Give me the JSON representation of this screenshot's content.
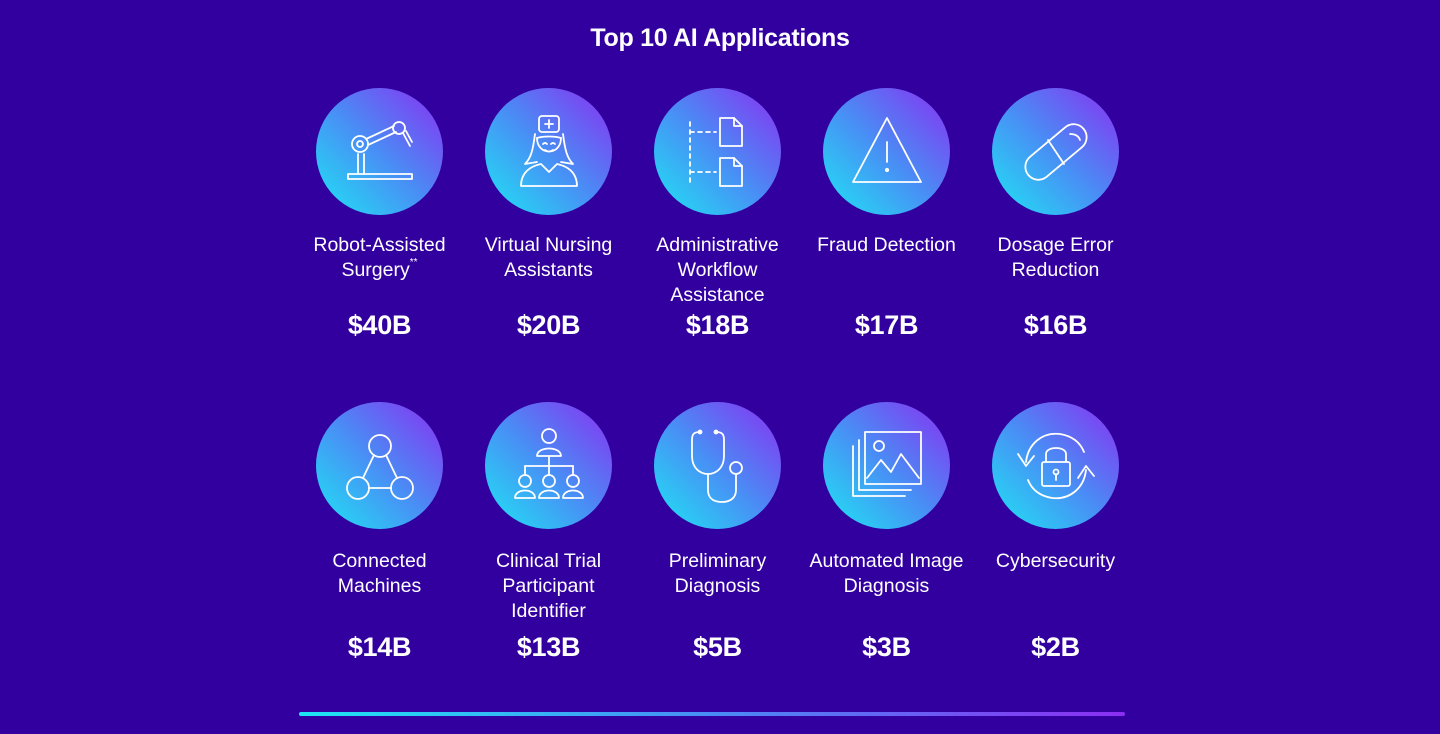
{
  "title": "Top 10 AI Applications",
  "items": [
    {
      "label": "Robot-Assisted Surgery",
      "note": "**",
      "value": "$40B",
      "icon": "robotic-arm-icon"
    },
    {
      "label": "Virtual Nursing Assistants",
      "value": "$20B",
      "icon": "nurse-icon"
    },
    {
      "label": "Administrative Workflow Assistance",
      "value": "$18B",
      "icon": "workflow-documents-icon"
    },
    {
      "label": "Fraud Detection",
      "value": "$17B",
      "icon": "warning-triangle-icon"
    },
    {
      "label": "Dosage Error Reduction",
      "value": "$16B",
      "icon": "pill-capsule-icon"
    },
    {
      "label": "Connected Machines",
      "value": "$14B",
      "icon": "connected-nodes-icon"
    },
    {
      "label": "Clinical Trial Participant Identifier",
      "value": "$13B",
      "icon": "people-hierarchy-icon"
    },
    {
      "label": "Preliminary Diagnosis",
      "value": "$5B",
      "icon": "stethoscope-icon"
    },
    {
      "label": "Automated Image Diagnosis",
      "value": "$3B",
      "icon": "image-stack-icon"
    },
    {
      "label": "Cybersecurity",
      "value": "$2B",
      "icon": "lock-refresh-icon"
    }
  ],
  "colors": {
    "background": "#3300a0",
    "gradient_start": "#1ee6f4",
    "gradient_end": "#8b2ef2",
    "text": "#ffffff"
  }
}
